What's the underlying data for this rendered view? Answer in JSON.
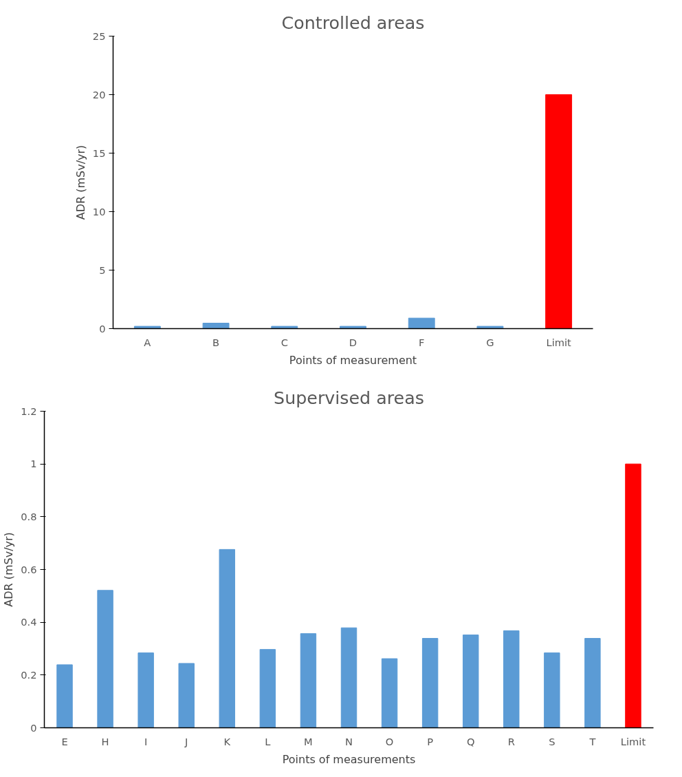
{
  "chart_data": [
    {
      "type": "bar",
      "title": "Controlled areas",
      "xlabel": "Points of measurement",
      "ylabel": "ADR (mSv/yr)",
      "categories": [
        "A",
        "B",
        "C",
        "D",
        "F",
        "G",
        "Limit"
      ],
      "values": [
        0.2,
        0.47,
        0.2,
        0.2,
        0.9,
        0.2,
        20
      ],
      "colors": [
        "#5b9bd5",
        "#5b9bd5",
        "#5b9bd5",
        "#5b9bd5",
        "#5b9bd5",
        "#5b9bd5",
        "#ff0000"
      ],
      "ylim": [
        0,
        25
      ],
      "yticks": [
        0,
        5,
        10,
        15,
        20,
        25
      ],
      "grid": false
    },
    {
      "type": "bar",
      "title": "Supervised areas",
      "xlabel": "Points of measurements",
      "ylabel": "ADR (mSv/yr)",
      "categories": [
        "E",
        "H",
        "I",
        "J",
        "K",
        "L",
        "M",
        "N",
        "O",
        "P",
        "Q",
        "R",
        "S",
        "T",
        "Limit"
      ],
      "values": [
        0.239,
        0.521,
        0.284,
        0.244,
        0.676,
        0.297,
        0.357,
        0.379,
        0.262,
        0.339,
        0.352,
        0.368,
        0.284,
        0.339,
        1
      ],
      "colors": [
        "#5b9bd5",
        "#5b9bd5",
        "#5b9bd5",
        "#5b9bd5",
        "#5b9bd5",
        "#5b9bd5",
        "#5b9bd5",
        "#5b9bd5",
        "#5b9bd5",
        "#5b9bd5",
        "#5b9bd5",
        "#5b9bd5",
        "#5b9bd5",
        "#5b9bd5",
        "#ff0000"
      ],
      "ylim": [
        0,
        1.2
      ],
      "yticks": [
        0,
        0.2,
        0.4,
        0.6,
        0.8,
        1,
        1.2
      ],
      "grid": false
    }
  ]
}
